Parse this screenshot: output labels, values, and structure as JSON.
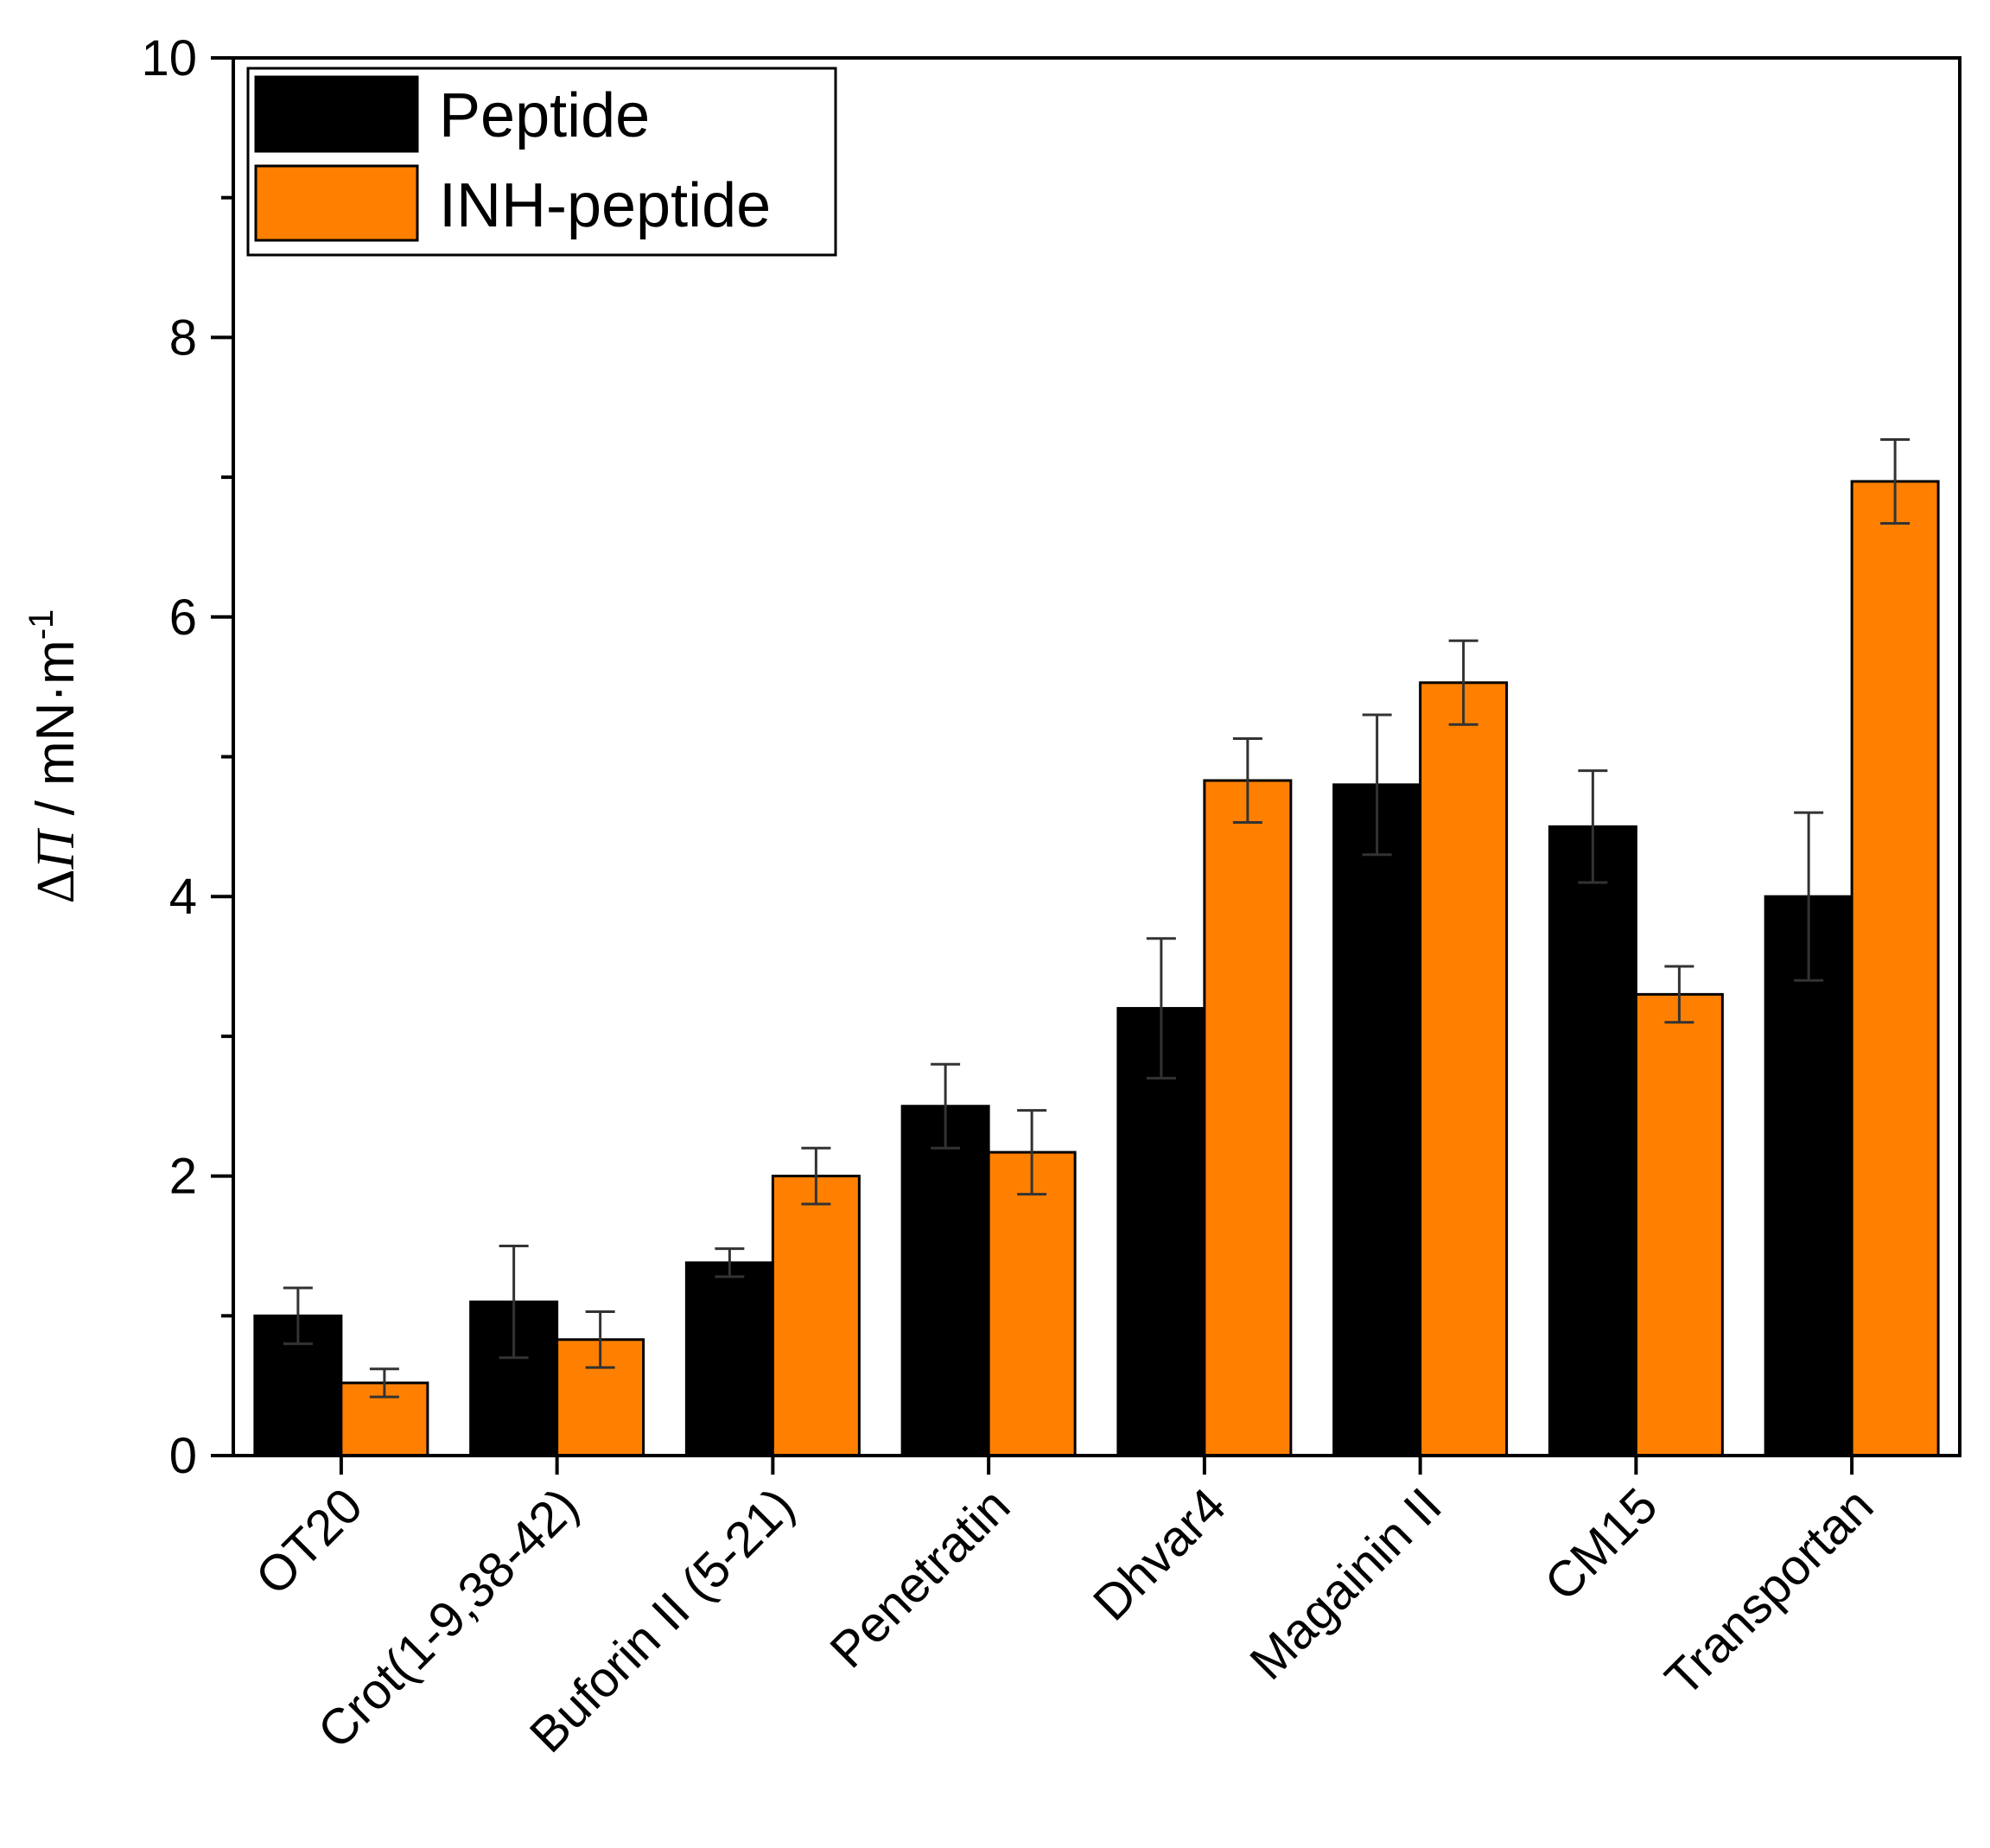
{
  "chart_data": {
    "type": "bar",
    "title": "",
    "xlabel": "",
    "ylabel": {
      "prefix": "Δ",
      "symbol": "Π",
      "unit": " / mN·m",
      "exponent": "-1"
    },
    "ylim": [
      0,
      10
    ],
    "yticks": [
      0,
      2,
      4,
      6,
      8,
      10
    ],
    "yticks_minor": [
      1,
      3,
      5,
      7,
      9
    ],
    "categories": [
      "OT20",
      "Crot(1-9,38-42)",
      "Buforin II (5-21)",
      "Penetratin",
      "Dhvar4",
      "Magainin II",
      "CM15",
      "Transportan"
    ],
    "series": [
      {
        "name": "Peptide",
        "color": "#000000",
        "values": [
          1.0,
          1.1,
          1.38,
          2.5,
          3.2,
          4.8,
          4.5,
          4.0
        ],
        "errors": [
          0.2,
          0.4,
          0.1,
          0.3,
          0.5,
          0.5,
          0.4,
          0.6
        ]
      },
      {
        "name": "INH-peptide",
        "color": "#FF8000",
        "values": [
          0.52,
          0.83,
          2.0,
          2.17,
          4.83,
          5.53,
          3.3,
          6.97
        ],
        "errors": [
          0.1,
          0.2,
          0.2,
          0.3,
          0.3,
          0.3,
          0.2,
          0.3
        ]
      }
    ],
    "legend": {
      "location": "top-left",
      "entries": [
        "Peptide",
        "INH-peptide"
      ]
    },
    "grid": false
  }
}
